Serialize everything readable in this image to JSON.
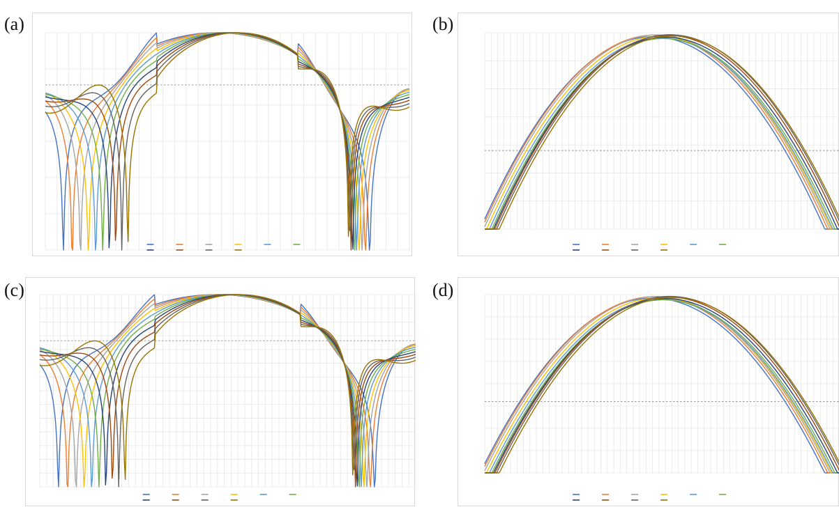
{
  "figure": {
    "panels": [
      {
        "id": "a",
        "label": "(a)"
      },
      {
        "id": "b",
        "label": "(b)"
      },
      {
        "id": "c",
        "label": "(c)"
      },
      {
        "id": "d",
        "label": "(d)"
      }
    ]
  },
  "colors": {
    "series": [
      "#4472c4",
      "#ed7d31",
      "#a5a5a5",
      "#ffc000",
      "#5b9bd5",
      "#70ad47",
      "#264478",
      "#9e480e",
      "#636363",
      "#997300",
      "#255e91",
      "#43682b"
    ],
    "grid": "#e6e6e6",
    "reference": "#9a9a9a"
  },
  "chart_data": [
    {
      "panel": "a",
      "type": "line",
      "title": "",
      "xlabel": "",
      "ylabel": "",
      "x": [
        -90,
        90
      ],
      "ylim": [
        -50,
        0
      ],
      "grid": true,
      "legend_position": "bottom",
      "series_count": 10,
      "shape": "main lobe with deep side-lobe nulls",
      "reference_line_db": -12
    },
    {
      "panel": "b",
      "type": "line",
      "title": "",
      "xlabel": "",
      "ylabel": "",
      "x": [
        -90,
        90
      ],
      "ylim": [
        -5,
        0
      ],
      "grid": true,
      "legend_position": "bottom",
      "series_count": 10,
      "shape": "zoomed main lobe",
      "reference_line_db": -3
    },
    {
      "panel": "c",
      "type": "line",
      "title": "",
      "xlabel": "",
      "ylabel": "",
      "x": [
        -90,
        90
      ],
      "ylim": [
        -50,
        0
      ],
      "grid": true,
      "legend_position": "bottom",
      "series_count": 10,
      "shape": "main lobe with deep side-lobe nulls",
      "reference_line_db": -12
    },
    {
      "panel": "d",
      "type": "line",
      "title": "",
      "xlabel": "",
      "ylabel": "",
      "x": [
        -90,
        90
      ],
      "ylim": [
        -5,
        0
      ],
      "grid": true,
      "legend_position": "bottom",
      "series_count": 10,
      "shape": "zoomed main lobe",
      "reference_line_db": -3
    }
  ]
}
